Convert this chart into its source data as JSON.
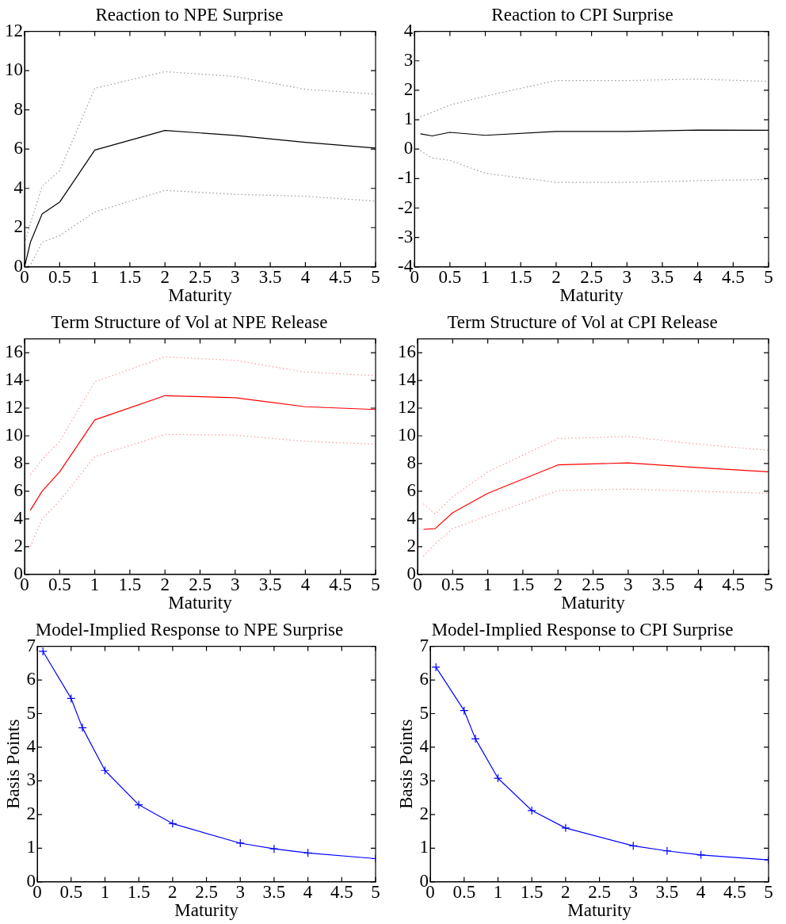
{
  "chart_data": [
    {
      "type": "line",
      "title": "Reaction to NPE Surprise",
      "xlabel": "Maturity",
      "x": [
        0,
        0.083,
        0.25,
        0.5,
        1,
        2,
        3,
        4,
        5
      ],
      "xlim": [
        0,
        5
      ],
      "xticks": [
        0,
        0.5,
        1,
        1.5,
        2,
        2.5,
        3,
        3.5,
        4,
        4.5,
        5
      ],
      "ylim": [
        0,
        12
      ],
      "yticks": [
        0,
        2,
        4,
        6,
        8,
        10,
        12
      ],
      "series": [
        {
          "color": "#000000",
          "values": [
            0,
            1.25,
            2.7,
            3.3,
            5.95,
            6.95,
            6.7,
            6.35,
            6.05
          ]
        },
        {
          "color": "#999999",
          "line_style": "dotted",
          "values": [
            1.2,
            2.2,
            4.1,
            4.9,
            9.1,
            9.95,
            9.7,
            9.05,
            8.8
          ]
        },
        {
          "color": "#999999",
          "line_style": "dotted",
          "values": [
            0,
            0.1,
            1.25,
            1.6,
            2.8,
            3.9,
            3.7,
            3.6,
            3.35
          ]
        }
      ]
    },
    {
      "type": "line",
      "title": "Reaction to CPI Surprise",
      "xlabel": "Maturity",
      "x": [
        0.083,
        0.25,
        0.5,
        1,
        2,
        3,
        4,
        5
      ],
      "xlim": [
        0,
        5
      ],
      "xticks": [
        0,
        0.5,
        1,
        1.5,
        2,
        2.5,
        3,
        3.5,
        4,
        4.5,
        5
      ],
      "ylim": [
        -4,
        4
      ],
      "yticks": [
        -4,
        -3,
        -2,
        -1,
        0,
        1,
        2,
        3,
        4
      ],
      "series": [
        {
          "color": "#000000",
          "values": [
            0.52,
            0.45,
            0.57,
            0.47,
            0.6,
            0.6,
            0.65,
            0.64
          ]
        },
        {
          "color": "#999999",
          "line_style": "dotted",
          "values": [
            1.1,
            1.25,
            1.5,
            1.8,
            2.33,
            2.33,
            2.38,
            2.3
          ]
        },
        {
          "color": "#999999",
          "line_style": "dotted",
          "values": [
            -0.05,
            -0.3,
            -0.38,
            -0.82,
            -1.13,
            -1.13,
            -1.07,
            -1.03
          ]
        }
      ]
    },
    {
      "type": "line",
      "title": "Term Structure of Vol at NPE Release",
      "xlabel": "Maturity",
      "x": [
        0.083,
        0.25,
        0.5,
        1,
        2,
        3,
        4,
        5
      ],
      "xlim": [
        0,
        5
      ],
      "xticks": [
        0,
        0.5,
        1,
        1.5,
        2,
        2.5,
        3,
        3.5,
        4,
        4.5,
        5
      ],
      "ylim": [
        0,
        17
      ],
      "yticks": [
        0,
        2,
        4,
        6,
        8,
        10,
        12,
        14,
        16
      ],
      "series": [
        {
          "color": "#ff0000",
          "values": [
            4.63,
            6.0,
            7.4,
            11.15,
            12.9,
            12.75,
            12.1,
            11.9
          ]
        },
        {
          "color": "#ff9999",
          "line_style": "dotted",
          "values": [
            7.2,
            8.3,
            9.6,
            13.9,
            15.7,
            15.45,
            14.6,
            14.35
          ]
        },
        {
          "color": "#ff9999",
          "line_style": "dotted",
          "values": [
            2.0,
            4.0,
            5.3,
            8.5,
            10.1,
            10.05,
            9.6,
            9.4
          ]
        }
      ]
    },
    {
      "type": "line",
      "title": "Term Structure of Vol at CPI Release",
      "xlabel": "Maturity",
      "x": [
        0.083,
        0.25,
        0.5,
        1,
        2,
        3,
        4,
        5
      ],
      "xlim": [
        0,
        5
      ],
      "xticks": [
        0,
        0.5,
        1,
        1.5,
        2,
        2.5,
        3,
        3.5,
        4,
        4.5,
        5
      ],
      "ylim": [
        0,
        17
      ],
      "yticks": [
        0,
        2,
        4,
        6,
        8,
        10,
        12,
        14,
        16
      ],
      "series": [
        {
          "color": "#ff0000",
          "values": [
            3.25,
            3.3,
            4.45,
            5.85,
            7.9,
            8.05,
            7.7,
            7.4
          ]
        },
        {
          "color": "#ff9999",
          "line_style": "dotted",
          "values": [
            5.1,
            4.35,
            5.6,
            7.4,
            9.8,
            9.95,
            9.4,
            8.95
          ]
        },
        {
          "color": "#ff9999",
          "line_style": "dotted",
          "values": [
            1.3,
            2.2,
            3.3,
            4.25,
            6.05,
            6.15,
            6.0,
            5.85
          ]
        }
      ]
    },
    {
      "type": "line",
      "title": "Model-Implied Response to NPE Surprise",
      "xlabel": "Maturity",
      "ylabel": "Basis Points",
      "marker": "cross",
      "x": [
        0.083,
        0.5,
        0.667,
        1,
        1.5,
        2,
        3,
        3.5,
        4,
        5
      ],
      "xlim": [
        0,
        5
      ],
      "xticks": [
        0,
        0.5,
        1,
        1.5,
        2,
        2.5,
        3,
        3.5,
        4,
        4.5,
        5
      ],
      "ylim": [
        0,
        7
      ],
      "yticks": [
        0,
        1,
        2,
        3,
        4,
        5,
        6,
        7
      ],
      "series": [
        {
          "color": "#0000ff",
          "values": [
            6.85,
            5.45,
            4.58,
            3.31,
            2.29,
            1.73,
            1.15,
            0.98,
            0.86,
            0.69
          ]
        }
      ]
    },
    {
      "type": "line",
      "title": "Model-Implied Response to CPI Surprise",
      "xlabel": "Maturity",
      "ylabel": "Basis Points",
      "marker": "cross",
      "x": [
        0.083,
        0.5,
        0.667,
        1,
        1.5,
        2,
        3,
        3.5,
        4,
        5
      ],
      "xlim": [
        0,
        5
      ],
      "xticks": [
        0,
        0.5,
        1,
        1.5,
        2,
        2.5,
        3,
        3.5,
        4,
        4.5,
        5
      ],
      "ylim": [
        0,
        7
      ],
      "yticks": [
        0,
        1,
        2,
        3,
        4,
        5,
        6,
        7
      ],
      "series": [
        {
          "color": "#0000ff",
          "values": [
            6.38,
            5.09,
            4.25,
            3.08,
            2.12,
            1.6,
            1.07,
            0.92,
            0.8,
            0.65
          ]
        }
      ]
    }
  ]
}
